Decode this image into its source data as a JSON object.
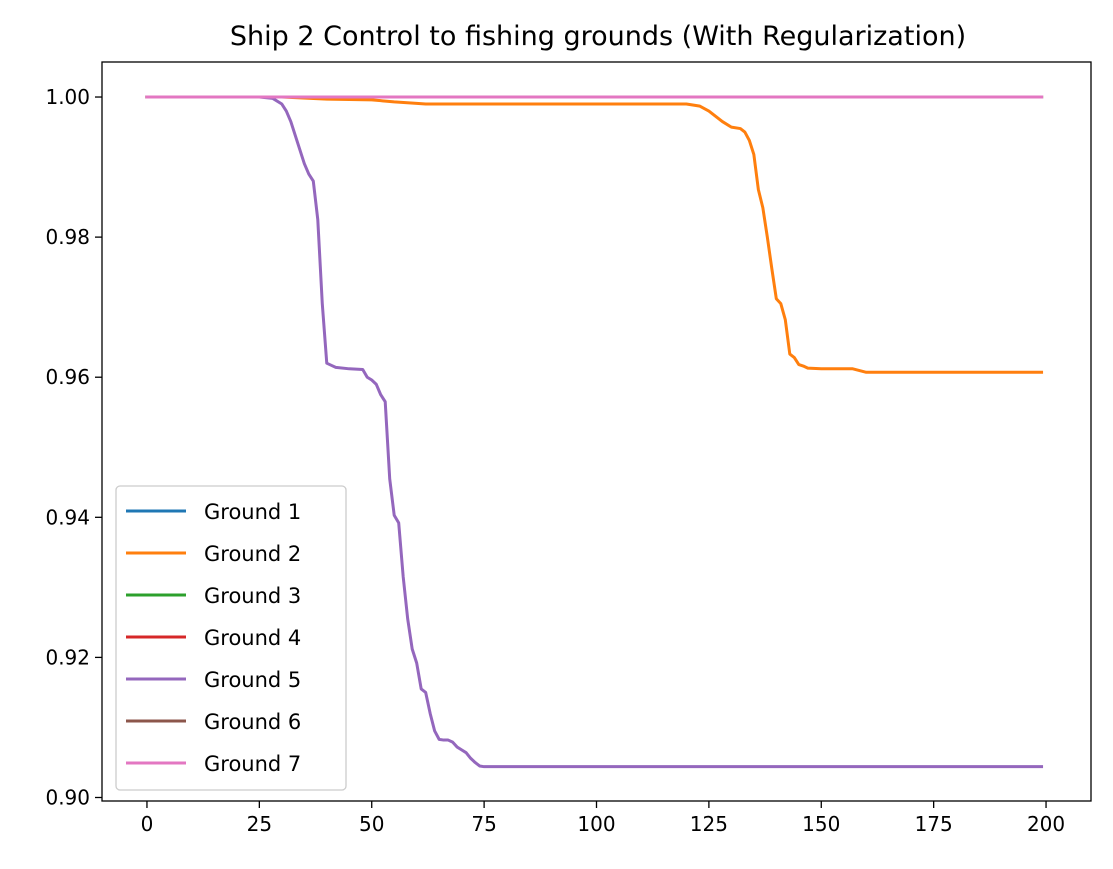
{
  "chart_data": {
    "type": "line",
    "title": "Ship 2 Control to fishing grounds (With Regularization)",
    "xlabel": "",
    "ylabel": "",
    "xlim": [
      -10,
      210
    ],
    "ylim": [
      0.8995,
      1.005
    ],
    "xticks": [
      0,
      25,
      50,
      75,
      100,
      125,
      150,
      175,
      200
    ],
    "xtick_labels": [
      "0",
      "25",
      "50",
      "75",
      "100",
      "125",
      "150",
      "175",
      "200"
    ],
    "yticks": [
      0.9,
      0.92,
      0.94,
      0.96,
      0.98,
      1.0
    ],
    "ytick_labels": [
      "0.90",
      "0.92",
      "0.94",
      "0.96",
      "0.98",
      "1.00"
    ],
    "grid": false,
    "legend_position": "lower-left",
    "series": [
      {
        "name": "Ground 1",
        "color": "#1f77b4",
        "x": [
          0,
          199
        ],
        "y": [
          1.0,
          1.0
        ]
      },
      {
        "name": "Ground 2",
        "color": "#ff7f0e",
        "x": [
          0,
          30,
          40,
          50,
          55,
          60,
          62,
          65,
          80,
          100,
          120,
          123,
          125,
          128,
          130,
          132,
          133,
          134,
          135,
          136,
          137,
          138,
          139,
          140,
          141,
          142,
          143,
          144,
          145,
          146,
          147,
          150,
          157,
          160,
          170,
          199
        ],
        "y": [
          1.0,
          1.0,
          0.9997,
          0.9996,
          0.9993,
          0.9991,
          0.999,
          0.999,
          0.999,
          0.999,
          0.999,
          0.9987,
          0.998,
          0.9965,
          0.9957,
          0.9955,
          0.995,
          0.9938,
          0.9918,
          0.9868,
          0.9842,
          0.98,
          0.9755,
          0.9712,
          0.9705,
          0.9682,
          0.9633,
          0.9628,
          0.9618,
          0.9616,
          0.9613,
          0.9612,
          0.9612,
          0.9607,
          0.9607,
          0.9607
        ]
      },
      {
        "name": "Ground 3",
        "color": "#2ca02c",
        "x": [
          0,
          199
        ],
        "y": [
          1.0,
          1.0
        ]
      },
      {
        "name": "Ground 4",
        "color": "#d62728",
        "x": [
          0,
          199
        ],
        "y": [
          1.0,
          1.0
        ]
      },
      {
        "name": "Ground 5",
        "color": "#9467bd",
        "x": [
          0,
          25,
          28,
          30,
          31,
          32,
          33,
          34,
          35,
          36,
          37,
          38,
          39,
          40,
          41,
          42,
          45,
          48,
          49,
          50,
          51,
          52,
          53,
          54,
          55,
          56,
          57,
          58,
          59,
          60,
          61,
          62,
          63,
          64,
          65,
          66,
          67,
          68,
          69,
          70,
          71,
          72,
          73,
          74,
          75,
          76,
          80,
          199
        ],
        "y": [
          1.0,
          1.0,
          0.9998,
          0.999,
          0.998,
          0.9965,
          0.9945,
          0.9925,
          0.9905,
          0.989,
          0.988,
          0.9825,
          0.9705,
          0.962,
          0.9617,
          0.9614,
          0.9612,
          0.9611,
          0.96,
          0.9596,
          0.959,
          0.9575,
          0.9565,
          0.9455,
          0.9403,
          0.9392,
          0.9315,
          0.9255,
          0.9212,
          0.9192,
          0.9155,
          0.915,
          0.912,
          0.9095,
          0.9083,
          0.9082,
          0.9082,
          0.9079,
          0.9072,
          0.9068,
          0.9064,
          0.9056,
          0.905,
          0.9045,
          0.9044,
          0.9044,
          0.9044,
          0.9044
        ]
      },
      {
        "name": "Ground 6",
        "color": "#8c564b",
        "x": [
          0,
          199
        ],
        "y": [
          1.0,
          1.0
        ]
      },
      {
        "name": "Ground 7",
        "color": "#e377c2",
        "x": [
          0,
          199
        ],
        "y": [
          1.0,
          1.0
        ]
      }
    ]
  }
}
